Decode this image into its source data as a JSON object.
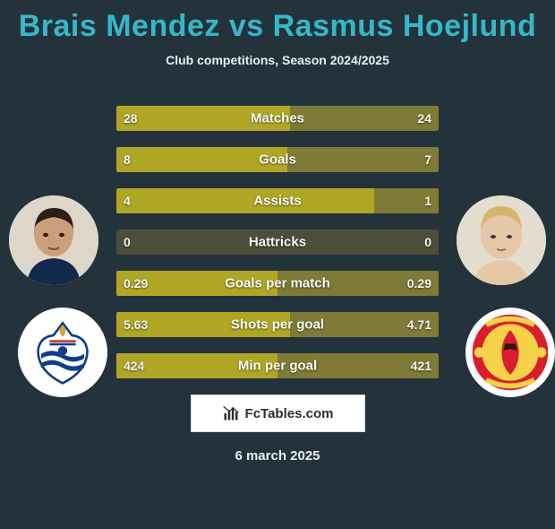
{
  "title": "Brais Mendez vs Rasmus Hoejlund",
  "subtitle": "Club competitions, Season 2024/2025",
  "date": "6 march 2025",
  "brand": "FcTables.com",
  "colors": {
    "background": "#24323c",
    "title": "#35b8c6",
    "text": "#e9eef2",
    "bar_left": "#b0a626",
    "bar_right": "#7f7b36",
    "bar_empty_left": "#5a5a2e",
    "bar_empty_right": "#505230",
    "track_zero": "#4b4f3a"
  },
  "rows": [
    {
      "metric": "Matches",
      "left_val": "28",
      "right_val": "24",
      "left_pct": 54,
      "right_pct": 46
    },
    {
      "metric": "Goals",
      "left_val": "8",
      "right_val": "7",
      "left_pct": 53,
      "right_pct": 47
    },
    {
      "metric": "Assists",
      "left_val": "4",
      "right_val": "1",
      "left_pct": 80,
      "right_pct": 20
    },
    {
      "metric": "Hattricks",
      "left_val": "0",
      "right_val": "0",
      "left_pct": 0,
      "right_pct": 0
    },
    {
      "metric": "Goals per match",
      "left_val": "0.29",
      "right_val": "0.29",
      "left_pct": 50,
      "right_pct": 50
    },
    {
      "metric": "Shots per goal",
      "left_val": "5.63",
      "right_val": "4.71",
      "left_pct": 54,
      "right_pct": 46
    },
    {
      "metric": "Min per goal",
      "left_val": "424",
      "right_val": "421",
      "left_pct": 50,
      "right_pct": 50
    }
  ],
  "player_left": {
    "name": "Brais Mendez",
    "club": "Real Sociedad"
  },
  "player_right": {
    "name": "Rasmus Hoejlund",
    "club": "Manchester United"
  }
}
